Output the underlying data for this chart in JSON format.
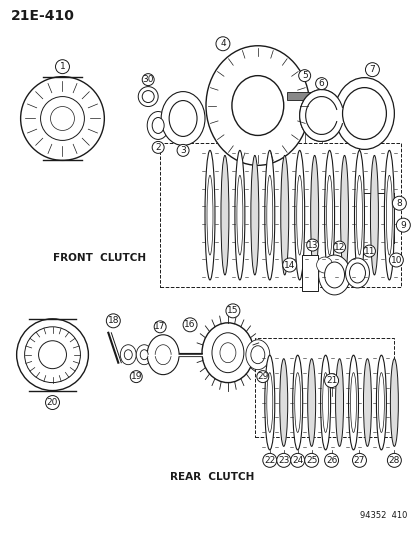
{
  "title_code": "21E-410",
  "bg_color": "#ffffff",
  "line_color": "#1a1a1a",
  "front_clutch_label": "FRONT  CLUTCH",
  "rear_clutch_label": "REAR  CLUTCH",
  "catalog_number": "94352  410",
  "figsize": [
    4.14,
    5.33
  ],
  "dpi": 100
}
